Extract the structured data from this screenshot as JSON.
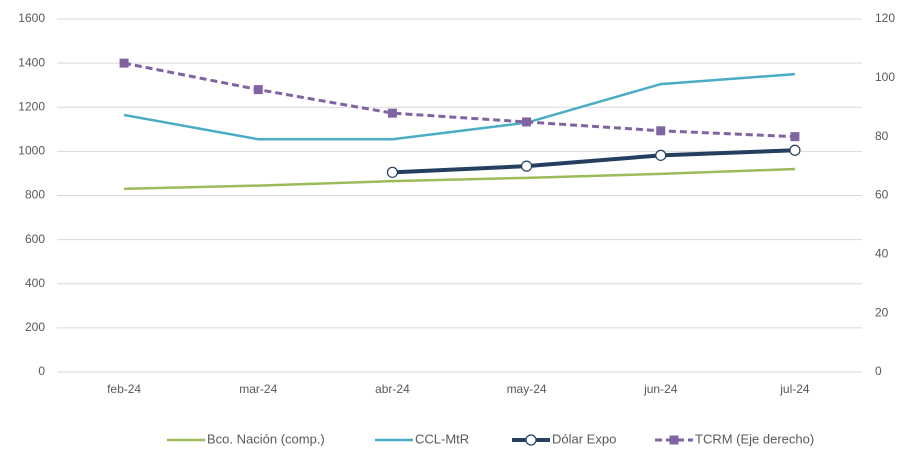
{
  "chart_data": {
    "type": "line",
    "categories": [
      "feb-24",
      "mar-24",
      "abr-24",
      "may-24",
      "jun-24",
      "jul-24"
    ],
    "ylim": [
      0,
      1600
    ],
    "yticks": [
      0,
      200,
      400,
      600,
      800,
      1000,
      1200,
      1400,
      1600
    ],
    "y2lim": [
      0,
      120
    ],
    "y2ticks": [
      0,
      20,
      40,
      60,
      80,
      100,
      120
    ],
    "grid": true,
    "legend": "bottom",
    "series": [
      {
        "name": "Bco. Nación (comp.)",
        "color": "#9bbb59",
        "values": [
          830,
          845,
          865,
          880,
          898,
          920
        ]
      },
      {
        "name": "CCL-MtR",
        "color": "#4bacc6",
        "values": [
          1165,
          1055,
          1055,
          1130,
          1305,
          1350
        ]
      },
      {
        "name": "Dólar Expo",
        "color": "#243f60",
        "marker": "circle",
        "values": [
          null,
          null,
          905,
          933,
          982,
          1005
        ]
      },
      {
        "name": "TCRM (Eje derecho)",
        "color": "#8064a2",
        "marker": "square",
        "dash": true,
        "axis": "y2",
        "values": [
          105,
          96,
          88,
          85,
          82,
          80
        ]
      }
    ]
  }
}
